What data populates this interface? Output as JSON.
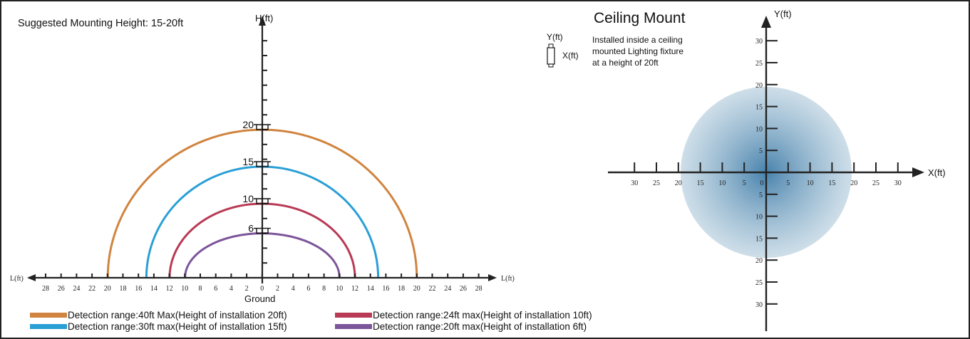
{
  "left_panel": {
    "suggested_height": "Suggested Mounting Height: 15-20ft",
    "v_axis_label": "H(ft)",
    "h_axis_left_label": "L(ft)",
    "h_axis_right_label": "L(ft)",
    "ground_label": "Ground",
    "height_markers": [
      {
        "label": "20",
        "value": 20
      },
      {
        "label": "15",
        "value": 15
      },
      {
        "label": "10",
        "value": 10
      },
      {
        "label": "6",
        "value": 6
      }
    ],
    "x_ticks": [
      "28",
      "26",
      "24",
      "22",
      "20",
      "18",
      "16",
      "14",
      "12",
      "10",
      "8",
      "6",
      "4",
      "2",
      "0",
      "2",
      "4",
      "6",
      "8",
      "10",
      "12",
      "14",
      "16",
      "18",
      "20",
      "22",
      "24",
      "26",
      "28"
    ],
    "arcs": [
      {
        "name": "arc-40ft",
        "height": 20,
        "radius": 20,
        "color": "#d0843f"
      },
      {
        "name": "arc-30ft",
        "height": 15,
        "radius": 15,
        "color": "#2a9fd6"
      },
      {
        "name": "arc-24ft",
        "height": 10,
        "radius": 12,
        "color": "#b83a55"
      },
      {
        "name": "arc-20ft",
        "height": 6,
        "radius": 10,
        "color": "#7d559a"
      }
    ],
    "legend": [
      {
        "text": "Detection range:40ft Max(Height of installation 20ft)",
        "color": "#d0843f"
      },
      {
        "text": "Detection range:24ft max(Height of installation 10ft)",
        "color": "#b83a55"
      },
      {
        "text": "Detection range:30ft max(Height of installation 15ft)",
        "color": "#2a9fd6"
      },
      {
        "text": "Detection range:20ft max(Height of installation 6ft)",
        "color": "#7d559a"
      }
    ]
  },
  "right_panel": {
    "title": "Ceiling Mount",
    "small_y_label": "Y(ft)",
    "small_x_label": "X(ft)",
    "description_lines": [
      "Installed inside a ceiling",
      "mounted Lighting fixture",
      "at a height of 20ft"
    ],
    "y_axis_label": "Y(ft)",
    "x_axis_label": "X(ft)",
    "x_ticks": [
      "30",
      "25",
      "20",
      "15",
      "10",
      "5",
      "0",
      "5",
      "10",
      "15",
      "20",
      "25",
      "30"
    ],
    "y_ticks_up": [
      "30",
      "25",
      "20",
      "15",
      "10",
      "5"
    ],
    "y_ticks_down": [
      "5",
      "10",
      "15",
      "20",
      "25",
      "30"
    ],
    "coverage_radius": 20,
    "coverage_color": "#5a8fb5"
  }
}
